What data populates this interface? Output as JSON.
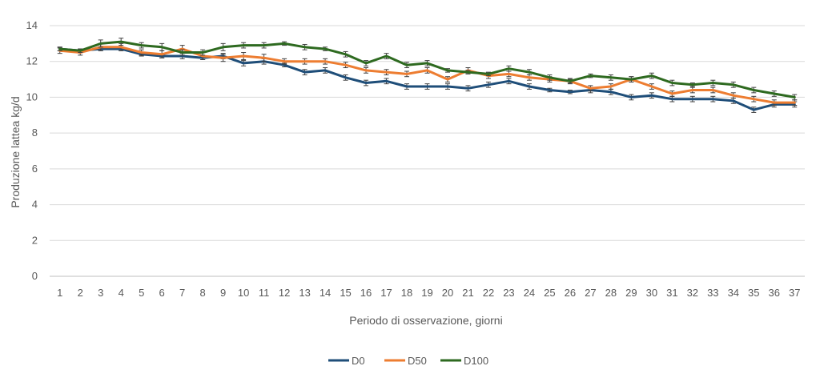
{
  "chart_data": {
    "type": "line",
    "title": "",
    "xlabel": "Periodo di osservazione,  giorni",
    "ylabel": "Produzione lattea kg/d",
    "ylim": [
      0,
      14
    ],
    "yticks": [
      "0",
      "2",
      "4",
      "6",
      "8",
      "10",
      "12",
      "14"
    ],
    "categories": [
      "1",
      "2",
      "3",
      "4",
      "5",
      "6",
      "7",
      "8",
      "9",
      "10",
      "11",
      "12",
      "13",
      "14",
      "15",
      "16",
      "17",
      "18",
      "19",
      "20",
      "21",
      "22",
      "23",
      "24",
      "25",
      "26",
      "27",
      "28",
      "29",
      "30",
      "31",
      "32",
      "33",
      "34",
      "35",
      "36",
      "37"
    ],
    "grid": "horizontal",
    "legend_position": "bottom",
    "error_bars": true,
    "series": [
      {
        "name": "D0",
        "color": "#1f4e79",
        "values": [
          12.7,
          12.6,
          12.7,
          12.7,
          12.4,
          12.3,
          12.3,
          12.2,
          12.3,
          11.9,
          12.0,
          11.8,
          11.4,
          11.5,
          11.1,
          10.8,
          10.9,
          10.6,
          10.6,
          10.6,
          10.5,
          10.7,
          10.9,
          10.6,
          10.4,
          10.3,
          10.4,
          10.3,
          10.0,
          10.1,
          9.9,
          9.9,
          9.9,
          9.8,
          9.3,
          9.6,
          9.6
        ],
        "errors": [
          0.1,
          0.1,
          0.1,
          0.1,
          0.1,
          0.1,
          0.15,
          0.1,
          0.15,
          0.15,
          0.15,
          0.1,
          0.15,
          0.15,
          0.15,
          0.15,
          0.15,
          0.15,
          0.15,
          0.15,
          0.15,
          0.15,
          0.15,
          0.15,
          0.1,
          0.1,
          0.15,
          0.15,
          0.15,
          0.15,
          0.15,
          0.15,
          0.15,
          0.15,
          0.15,
          0.15,
          0.15
        ]
      },
      {
        "name": "D50",
        "color": "#ed7d31",
        "values": [
          12.6,
          12.5,
          12.8,
          12.8,
          12.5,
          12.4,
          12.7,
          12.3,
          12.2,
          12.3,
          12.2,
          12.0,
          12.0,
          12.0,
          11.8,
          11.5,
          11.4,
          11.3,
          11.5,
          11.0,
          11.5,
          11.2,
          11.3,
          11.1,
          11.0,
          10.9,
          10.5,
          10.6,
          11.0,
          10.6,
          10.2,
          10.4,
          10.4,
          10.1,
          9.9,
          9.7,
          9.7
        ],
        "errors": [
          0.15,
          0.15,
          0.2,
          0.2,
          0.15,
          0.2,
          0.2,
          0.2,
          0.2,
          0.2,
          0.2,
          0.15,
          0.15,
          0.15,
          0.15,
          0.15,
          0.15,
          0.15,
          0.15,
          0.15,
          0.15,
          0.15,
          0.15,
          0.15,
          0.15,
          0.15,
          0.15,
          0.15,
          0.15,
          0.15,
          0.15,
          0.15,
          0.15,
          0.15,
          0.15,
          0.15,
          0.15
        ]
      },
      {
        "name": "D100",
        "color": "#2e6a20",
        "values": [
          12.7,
          12.6,
          13.0,
          13.1,
          12.9,
          12.8,
          12.5,
          12.5,
          12.8,
          12.9,
          12.9,
          13.0,
          12.8,
          12.7,
          12.4,
          11.9,
          12.3,
          11.8,
          11.9,
          11.5,
          11.4,
          11.3,
          11.6,
          11.4,
          11.1,
          10.9,
          11.2,
          11.1,
          11.0,
          11.2,
          10.8,
          10.7,
          10.8,
          10.7,
          10.4,
          10.2,
          10.0
        ],
        "errors": [
          0.1,
          0.1,
          0.2,
          0.2,
          0.15,
          0.2,
          0.15,
          0.15,
          0.2,
          0.15,
          0.15,
          0.1,
          0.15,
          0.1,
          0.15,
          0.15,
          0.15,
          0.15,
          0.15,
          0.1,
          0.1,
          0.1,
          0.15,
          0.15,
          0.15,
          0.1,
          0.1,
          0.15,
          0.15,
          0.15,
          0.15,
          0.1,
          0.15,
          0.15,
          0.15,
          0.15,
          0.15
        ]
      }
    ]
  }
}
